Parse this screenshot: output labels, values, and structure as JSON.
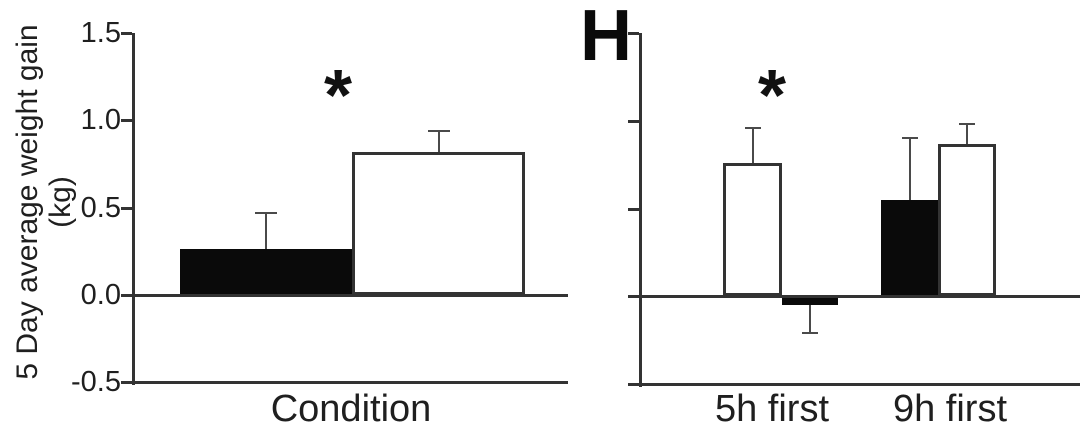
{
  "figure": {
    "y_axis_title_line1": "5 Day average weight gain",
    "y_axis_title_line2": "(kg)"
  },
  "colors": {
    "axis": "#333333",
    "error_bar": "#4a4a4a",
    "text": "#1f1f1f",
    "bar_black_fill": "#0a0a0a",
    "bar_white_fill": "#ffffff",
    "background": "#ffffff"
  },
  "chart_data": [
    {
      "type": "bar",
      "panel": "left",
      "ylabel": "5 Day average weight gain (kg)",
      "xlabel_center": "Condition",
      "ylim": [
        -0.5,
        1.5
      ],
      "ytick_values": [
        1.5,
        1.0,
        0.5,
        0.0,
        -0.5
      ],
      "yticks": [
        "1.5",
        "1.0",
        "0.5",
        "0.0",
        "-0.5"
      ],
      "grid": false,
      "legend": "none",
      "categories": [
        "Condition"
      ],
      "bars": [
        {
          "category": "Condition",
          "series": "black-filled",
          "value": 0.26,
          "error_top": 0.47
        },
        {
          "category": "Condition",
          "series": "white-open",
          "value": 0.82,
          "error_top": 0.94
        }
      ],
      "annotations": [
        {
          "text": "*",
          "position": "above bars, between black and white bar tops"
        }
      ]
    },
    {
      "type": "bar",
      "panel": "right",
      "panel_label": "H",
      "ylim": [
        -0.5,
        1.5
      ],
      "ytick_values": [
        1.5,
        1.0,
        0.5,
        0.0,
        -0.5
      ],
      "ytick_labels_shown": false,
      "grid": false,
      "legend": "none",
      "categories": [
        "5h first",
        "9h first"
      ],
      "bars": [
        {
          "category": "5h first",
          "series": "white-open",
          "value": 0.76,
          "error_top": 0.96
        },
        {
          "category": "5h first",
          "series": "black-filled",
          "value": -0.05,
          "error_top": -0.21
        },
        {
          "category": "9h first",
          "series": "black-filled",
          "value": 0.55,
          "error_top": 0.9
        },
        {
          "category": "9h first",
          "series": "white-open",
          "value": 0.87,
          "error_top": 0.98
        }
      ],
      "annotations": [
        {
          "text": "*",
          "position": "above 5h first white bar"
        }
      ]
    }
  ]
}
